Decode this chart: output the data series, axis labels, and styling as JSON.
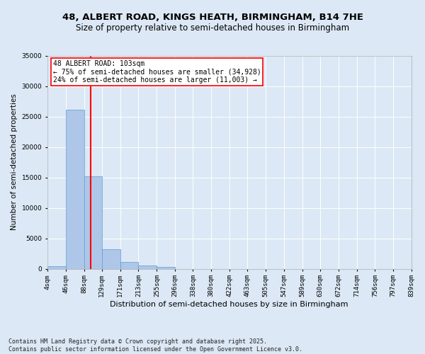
{
  "title1": "48, ALBERT ROAD, KINGS HEATH, BIRMINGHAM, B14 7HE",
  "title2": "Size of property relative to semi-detached houses in Birmingham",
  "xlabel": "Distribution of semi-detached houses by size in Birmingham",
  "ylabel": "Number of semi-detached properties",
  "annotation_title": "48 ALBERT ROAD: 103sqm",
  "annotation_line2": "← 75% of semi-detached houses are smaller (34,928)",
  "annotation_line3": "24% of semi-detached houses are larger (11,003) →",
  "property_size": 103,
  "bin_edges": [
    4,
    46,
    88,
    129,
    171,
    213,
    255,
    296,
    338,
    380,
    422,
    463,
    505,
    547,
    589,
    630,
    672,
    714,
    756,
    797,
    839
  ],
  "bin_labels": [
    "4sqm",
    "46sqm",
    "88sqm",
    "129sqm",
    "171sqm",
    "213sqm",
    "255sqm",
    "296sqm",
    "338sqm",
    "380sqm",
    "422sqm",
    "463sqm",
    "505sqm",
    "547sqm",
    "589sqm",
    "630sqm",
    "672sqm",
    "714sqm",
    "756sqm",
    "797sqm",
    "839sqm"
  ],
  "bar_values": [
    400,
    26100,
    15150,
    3250,
    1150,
    500,
    300,
    0,
    0,
    0,
    0,
    0,
    0,
    0,
    0,
    0,
    0,
    0,
    0,
    0
  ],
  "bar_color": "#aec6e8",
  "bar_edge_color": "#5a9fd4",
  "vline_color": "red",
  "background_color": "#dce8f5",
  "plot_bg_color": "#dce8f5",
  "ylim": [
    0,
    35000
  ],
  "yticks": [
    0,
    5000,
    10000,
    15000,
    20000,
    25000,
    30000,
    35000
  ],
  "footer": "Contains HM Land Registry data © Crown copyright and database right 2025.\nContains public sector information licensed under the Open Government Licence v3.0.",
  "title1_fontsize": 9.5,
  "title2_fontsize": 8.5,
  "annotation_fontsize": 7,
  "axis_fontsize": 6.5,
  "xlabel_fontsize": 8,
  "ylabel_fontsize": 7.5,
  "footer_fontsize": 6
}
